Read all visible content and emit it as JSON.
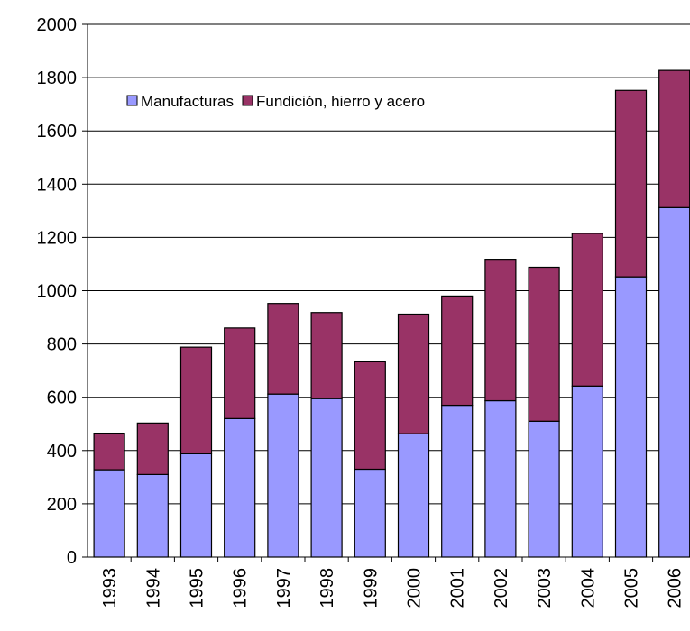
{
  "chart_data": {
    "type": "stacked-bar",
    "categories": [
      "1993",
      "1994",
      "1995",
      "1996",
      "1997",
      "1998",
      "1999",
      "2000",
      "2001",
      "2002",
      "2003",
      "2004",
      "2005",
      "2006"
    ],
    "series": [
      {
        "name": "Manufacturas",
        "color": "#9999ff",
        "values": [
          328,
          310,
          388,
          520,
          612,
          595,
          330,
          463,
          570,
          587,
          510,
          642,
          1052,
          1312
        ]
      },
      {
        "name": "Fundición, hierro y acero",
        "color": "#993366",
        "values": [
          137,
          193,
          400,
          340,
          340,
          323,
          403,
          449,
          410,
          531,
          578,
          573,
          700,
          515
        ]
      }
    ],
    "ylim": [
      0,
      2000
    ],
    "yticks": [
      0,
      200,
      400,
      600,
      800,
      1000,
      1200,
      1400,
      1600,
      1800,
      2000
    ],
    "grid": true
  }
}
